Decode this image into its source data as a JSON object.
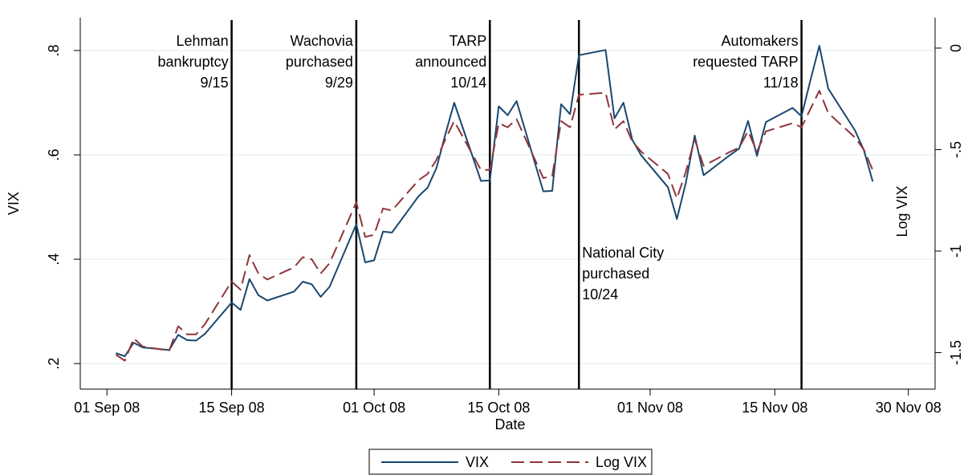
{
  "chart_data": {
    "type": "line",
    "xlabel": "Date",
    "ylabel": "VIX",
    "y2label": "Log VIX",
    "x": [
      "2008-09-02",
      "2008-09-03",
      "2008-09-04",
      "2008-09-05",
      "2008-09-08",
      "2008-09-09",
      "2008-09-10",
      "2008-09-11",
      "2008-09-12",
      "2008-09-15",
      "2008-09-16",
      "2008-09-17",
      "2008-09-18",
      "2008-09-19",
      "2008-09-22",
      "2008-09-23",
      "2008-09-24",
      "2008-09-25",
      "2008-09-26",
      "2008-09-29",
      "2008-09-30",
      "2008-10-01",
      "2008-10-02",
      "2008-10-03",
      "2008-10-06",
      "2008-10-07",
      "2008-10-08",
      "2008-10-09",
      "2008-10-10",
      "2008-10-13",
      "2008-10-14",
      "2008-10-15",
      "2008-10-16",
      "2008-10-17",
      "2008-10-20",
      "2008-10-21",
      "2008-10-22",
      "2008-10-23",
      "2008-10-24",
      "2008-10-27",
      "2008-10-28",
      "2008-10-29",
      "2008-10-30",
      "2008-10-31",
      "2008-11-03",
      "2008-11-04",
      "2008-11-05",
      "2008-11-06",
      "2008-11-07",
      "2008-11-10",
      "2008-11-11",
      "2008-11-12",
      "2008-11-13",
      "2008-11-14",
      "2008-11-17",
      "2008-11-18",
      "2008-11-19",
      "2008-11-20",
      "2008-11-21",
      "2008-11-24",
      "2008-11-25",
      "2008-11-26"
    ],
    "series": [
      {
        "name": "VIX",
        "color": "#1a476f",
        "style": "solid",
        "values": [
          0.22,
          0.214,
          0.24,
          0.231,
          0.226,
          0.255,
          0.245,
          0.244,
          0.257,
          0.317,
          0.303,
          0.362,
          0.331,
          0.321,
          0.338,
          0.357,
          0.352,
          0.328,
          0.347,
          0.467,
          0.394,
          0.398,
          0.453,
          0.451,
          0.521,
          0.537,
          0.575,
          0.639,
          0.7,
          0.55,
          0.551,
          0.693,
          0.676,
          0.703,
          0.53,
          0.531,
          0.697,
          0.678,
          0.791,
          0.801,
          0.67,
          0.7,
          0.629,
          0.599,
          0.538,
          0.477,
          0.546,
          0.637,
          0.561,
          0.6,
          0.612,
          0.665,
          0.598,
          0.663,
          0.69,
          0.674,
          0.743,
          0.809,
          0.727,
          0.647,
          0.609,
          0.549
        ]
      },
      {
        "name": "Log VIX",
        "color": "#90353b",
        "style": "dashed",
        "axis": "y2",
        "values": [
          -1.51,
          -1.54,
          -1.43,
          -1.47,
          -1.49,
          -1.37,
          -1.41,
          -1.41,
          -1.36,
          -1.15,
          -1.19,
          -1.02,
          -1.11,
          -1.14,
          -1.08,
          -1.03,
          -1.04,
          -1.11,
          -1.06,
          -0.76,
          -0.93,
          -0.92,
          -0.79,
          -0.8,
          -0.65,
          -0.62,
          -0.55,
          -0.45,
          -0.36,
          -0.6,
          -0.6,
          -0.37,
          -0.39,
          -0.35,
          -0.64,
          -0.63,
          -0.36,
          -0.39,
          -0.23,
          -0.22,
          -0.4,
          -0.36,
          -0.46,
          -0.51,
          -0.62,
          -0.74,
          -0.61,
          -0.45,
          -0.58,
          -0.51,
          -0.49,
          -0.41,
          -0.51,
          -0.41,
          -0.37,
          -0.39,
          -0.3,
          -0.21,
          -0.32,
          -0.44,
          -0.5,
          -0.6
        ]
      }
    ],
    "xlim": [
      "2008-08-29",
      "2008-12-03"
    ],
    "xticks": [
      {
        "value": "2008-09-01",
        "label": "01 Sep 08"
      },
      {
        "value": "2008-09-15",
        "label": "15 Sep 08"
      },
      {
        "value": "2008-10-01",
        "label": "01 Oct 08"
      },
      {
        "value": "2008-10-15",
        "label": "15 Oct 08"
      },
      {
        "value": "2008-11-01",
        "label": "01 Nov 08"
      },
      {
        "value": "2008-11-15",
        "label": "15 Nov 08"
      },
      {
        "value": "2008-11-30",
        "label": "30 Nov 08"
      }
    ],
    "ylim": [
      0.151,
      0.863
    ],
    "yticks": [
      {
        "value": 0.2,
        "label": ".2"
      },
      {
        "value": 0.4,
        "label": ".4"
      },
      {
        "value": 0.6,
        "label": ".6"
      },
      {
        "value": 0.8,
        "label": ".8"
      }
    ],
    "y2lim": [
      -1.68,
      0.15
    ],
    "y2ticks": [
      {
        "value": -1.5,
        "label": "-1.5"
      },
      -1,
      {
        "value": -0.5,
        "label": "-.5"
      },
      0
    ],
    "grid": true,
    "legend": "bottom",
    "events": [
      {
        "date": "2008-09-15",
        "label": [
          "Lehman",
          "bankruptcy",
          "9/15"
        ]
      },
      {
        "date": "2008-09-29",
        "label": [
          "Wachovia",
          "purchased",
          "9/29"
        ]
      },
      {
        "date": "2008-10-14",
        "label": [
          "TARP",
          "announced",
          "10/14"
        ]
      },
      {
        "date": "2008-10-24",
        "label": [
          "National City",
          "purchased",
          "10/24"
        ]
      },
      {
        "date": "2008-11-18",
        "label": [
          "Automakers",
          "requested TARP",
          "11/18"
        ]
      }
    ]
  }
}
